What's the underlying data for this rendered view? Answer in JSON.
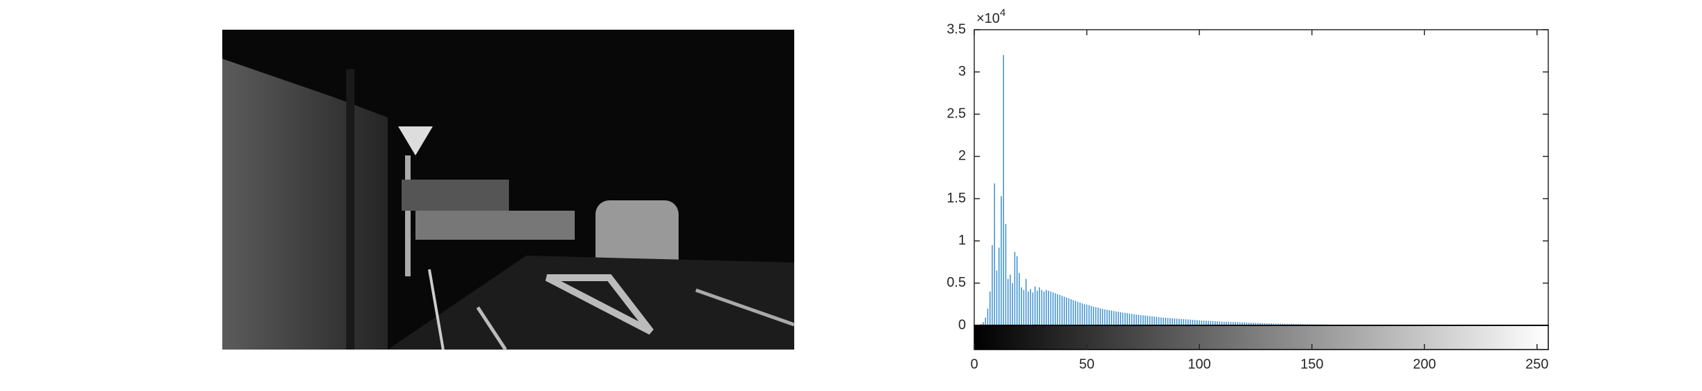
{
  "chart_data": {
    "type": "stem",
    "y_multiplier_base": "×10",
    "y_multiplier_exponent": "4",
    "color": "#3a8fd0",
    "xlim": [
      0,
      255
    ],
    "xticks": [
      0,
      50,
      100,
      150,
      200,
      250
    ],
    "ylim": [
      0,
      35000
    ],
    "yticks": [
      0,
      {
        "value": 5000,
        "label": "0.5"
      },
      {
        "value": 10000,
        "label": "1"
      },
      {
        "value": 15000,
        "label": "1.5"
      },
      {
        "value": 20000,
        "label": "2"
      },
      {
        "value": 25000,
        "label": "2.5"
      },
      {
        "value": 30000,
        "label": "3"
      },
      {
        "value": 35000,
        "label": "3.5"
      }
    ],
    "x": [
      0,
      1,
      2,
      3,
      4,
      5,
      6,
      7,
      8,
      9,
      10,
      11,
      12,
      13,
      14,
      15,
      16,
      17,
      18,
      19,
      20,
      21,
      22,
      23,
      24,
      25,
      26,
      27,
      28,
      29,
      30,
      31,
      32,
      33,
      34,
      35,
      36,
      37,
      38,
      39,
      40,
      41,
      42,
      43,
      44,
      45,
      46,
      47,
      48,
      49,
      50,
      51,
      52,
      53,
      54,
      55,
      56,
      57,
      58,
      59,
      60,
      61,
      62,
      63,
      64,
      65,
      66,
      67,
      68,
      69,
      70,
      71,
      72,
      73,
      74,
      75,
      76,
      77,
      78,
      79,
      80,
      81,
      82,
      83,
      84,
      85,
      86,
      87,
      88,
      89,
      90,
      91,
      92,
      93,
      94,
      95,
      96,
      97,
      98,
      99,
      100,
      101,
      102,
      103,
      104,
      105,
      106,
      107,
      108,
      109,
      110,
      111,
      112,
      113,
      114,
      115,
      116,
      117,
      118,
      119,
      120,
      121,
      122,
      123,
      124,
      125,
      126,
      127,
      128,
      129,
      130,
      131,
      132,
      133,
      134,
      135,
      136,
      137,
      138,
      139,
      140,
      141,
      142,
      143,
      144,
      145,
      146,
      147,
      148,
      149,
      150,
      151,
      152,
      153,
      154,
      155,
      156,
      157,
      158,
      159,
      160,
      161,
      162,
      163,
      164,
      165,
      166,
      167,
      168,
      169,
      170,
      171,
      172,
      173,
      174,
      175,
      176,
      177,
      178,
      179,
      180,
      181,
      182,
      183,
      184,
      185,
      186,
      187,
      188,
      189,
      190,
      191,
      192,
      193,
      194,
      195,
      196,
      197,
      198,
      199,
      200,
      201,
      202,
      203,
      204,
      205,
      206,
      207,
      208,
      209,
      210,
      211,
      212,
      213,
      214,
      215,
      216,
      217,
      218,
      219,
      220,
      221,
      222,
      223,
      224,
      225,
      226,
      227,
      228,
      229,
      230,
      231,
      232,
      233,
      234,
      235,
      236,
      237,
      238,
      239,
      240,
      241,
      242,
      243,
      244,
      245,
      246,
      247,
      248,
      249,
      250,
      251,
      252,
      253,
      254,
      255
    ],
    "values": [
      0,
      0,
      50,
      150,
      400,
      900,
      2000,
      4000,
      9500,
      16800,
      6500,
      9200,
      15300,
      32000,
      12000,
      5500,
      6000,
      5000,
      8700,
      8200,
      6200,
      4500,
      4200,
      5500,
      4000,
      4300,
      3900,
      4600,
      4100,
      4500,
      4200,
      4000,
      4200,
      4100,
      4000,
      3900,
      3800,
      3700,
      3600,
      3500,
      3400,
      3300,
      3200,
      3100,
      3000,
      2900,
      2800,
      2700,
      2600,
      2500,
      2450,
      2400,
      2300,
      2200,
      2150,
      2100,
      2000,
      1950,
      1900,
      1850,
      1800,
      1750,
      1700,
      1650,
      1600,
      1560,
      1520,
      1480,
      1440,
      1400,
      1360,
      1320,
      1280,
      1250,
      1220,
      1190,
      1160,
      1130,
      1100,
      1070,
      1040,
      1010,
      980,
      950,
      920,
      900,
      880,
      860,
      840,
      820,
      800,
      780,
      760,
      740,
      720,
      700,
      680,
      660,
      640,
      620,
      600,
      585,
      570,
      555,
      540,
      525,
      510,
      495,
      480,
      465,
      450,
      440,
      430,
      420,
      410,
      400,
      390,
      380,
      370,
      360,
      350,
      340,
      330,
      320,
      310,
      300,
      290,
      280,
      270,
      260,
      250,
      240,
      232,
      224,
      216,
      208,
      200,
      194,
      188,
      182,
      176,
      170,
      164,
      158,
      152,
      146,
      140,
      135,
      130,
      125,
      120,
      116,
      112,
      108,
      104,
      100,
      96,
      92,
      88,
      85,
      82,
      79,
      76,
      73,
      70,
      67,
      64,
      61,
      58,
      55,
      52,
      50,
      48,
      46,
      44,
      42,
      40,
      38,
      36,
      34,
      32,
      30,
      28,
      27,
      26,
      25,
      24,
      23,
      22,
      21,
      20,
      19,
      18,
      17,
      16,
      15,
      14,
      13,
      12,
      12,
      11,
      11,
      10,
      10,
      9,
      9,
      8,
      8,
      7,
      7,
      6,
      6,
      5,
      5,
      5,
      4,
      4,
      4,
      3,
      3,
      3,
      3,
      2,
      2,
      2,
      2,
      2,
      2,
      1,
      1,
      1,
      1,
      1,
      1,
      1,
      1,
      0,
      0,
      0,
      0,
      0,
      0,
      0,
      0,
      0,
      0,
      0,
      0,
      0,
      0,
      0,
      0,
      0,
      0,
      0,
      0
    ]
  }
}
